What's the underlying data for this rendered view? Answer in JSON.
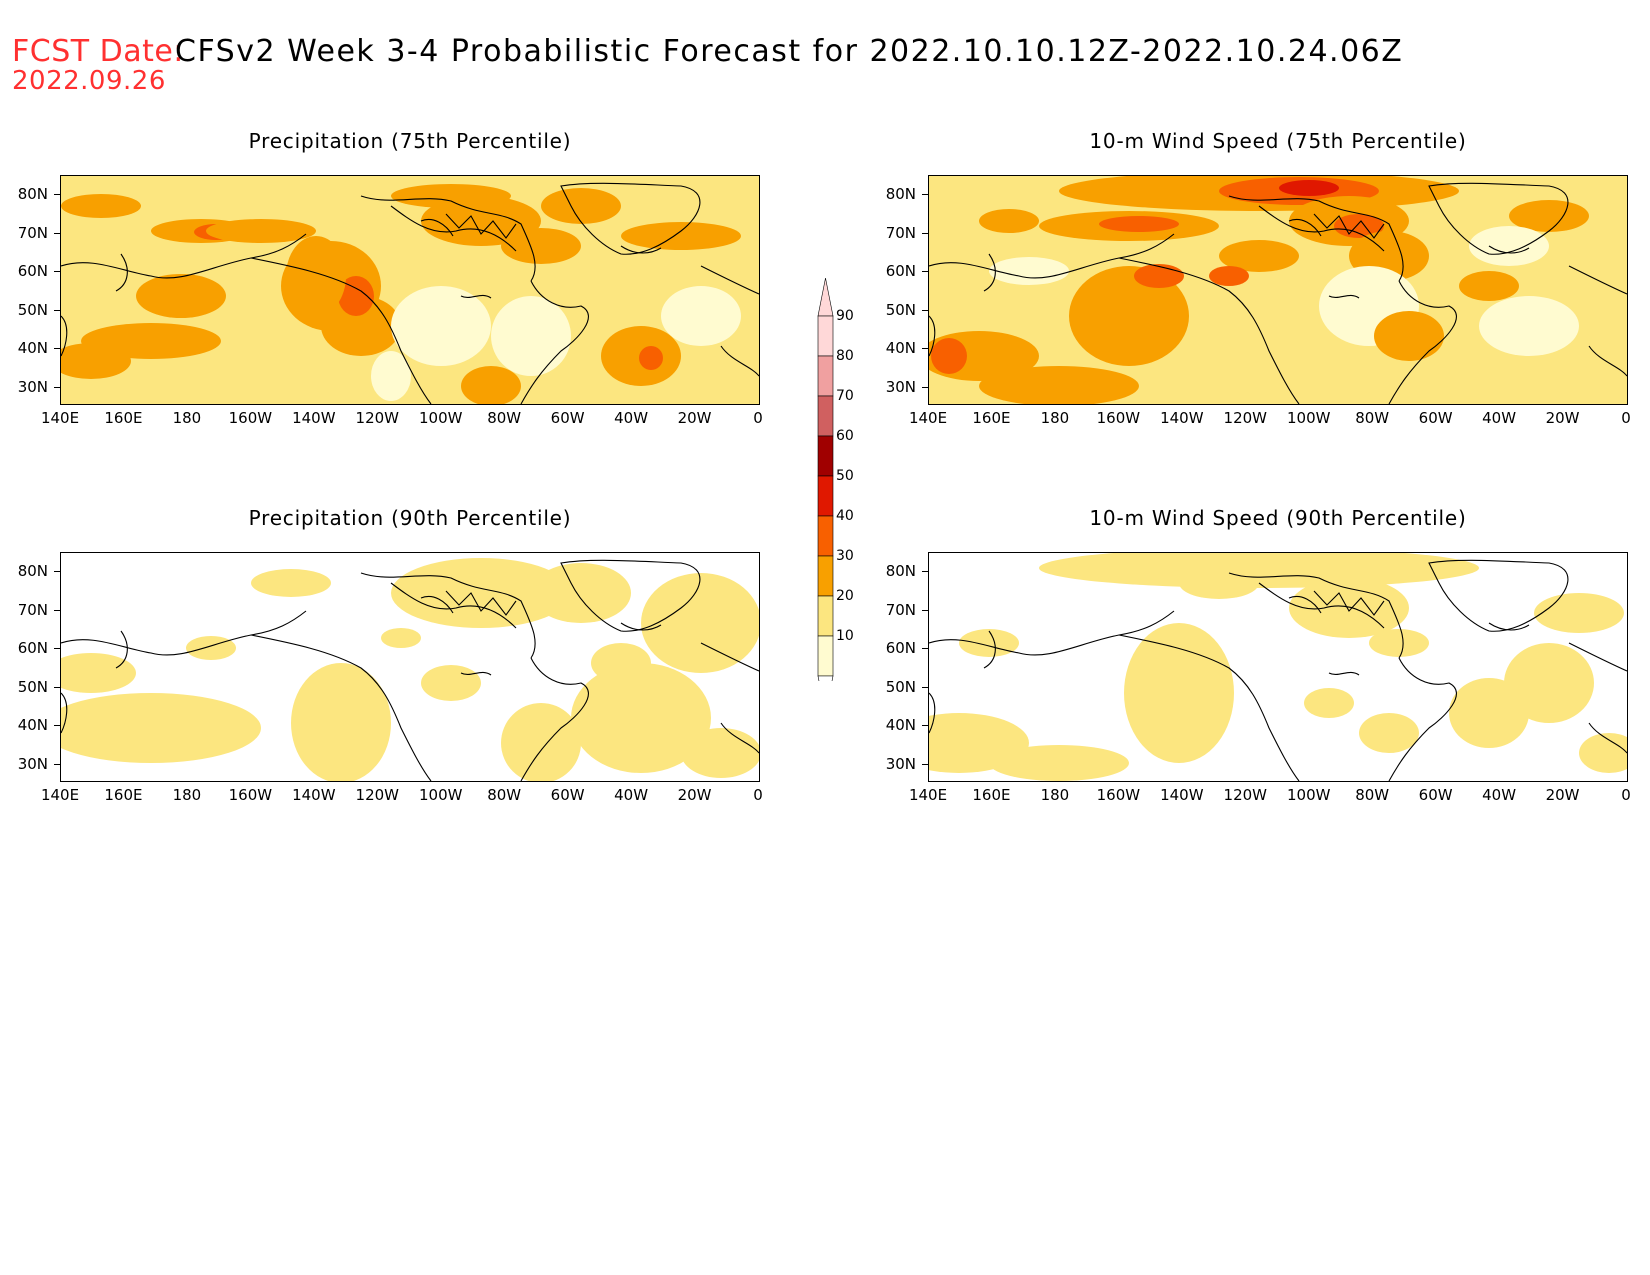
{
  "header": {
    "label": "FCST Date:",
    "title": "CFSv2 Week 3-4 Probabilistic Forecast for 2022.10.10.12Z-2022.10.24.06Z",
    "date": "2022.09.26"
  },
  "axes": {
    "lat_labels": [
      "80N",
      "70N",
      "60N",
      "50N",
      "40N",
      "30N"
    ],
    "lon_labels": [
      "140E",
      "160E",
      "180",
      "160W",
      "140W",
      "120W",
      "100W",
      "80W",
      "60W",
      "40W",
      "20W",
      "0"
    ]
  },
  "panels": [
    {
      "title": "Precipitation (75th Percentile)",
      "level": "high",
      "variant": "precip"
    },
    {
      "title": "10-m Wind Speed (75th Percentile)",
      "level": "high",
      "variant": "wind"
    },
    {
      "title": "Precipitation (90th Percentile)",
      "level": "low",
      "variant": "precip"
    },
    {
      "title": "10-m Wind Speed (90th Percentile)",
      "level": "low",
      "variant": "wind"
    }
  ],
  "colorbar": {
    "labels": [
      "90",
      "80",
      "70",
      "60",
      "50",
      "40",
      "30",
      "20",
      "10"
    ],
    "colors": [
      "#ffd8d8",
      "#f0a0a0",
      "#d06060",
      "#a00000",
      "#e01800",
      "#f86000",
      "#f8a000",
      "#fce680",
      "#fffbd0"
    ]
  }
}
